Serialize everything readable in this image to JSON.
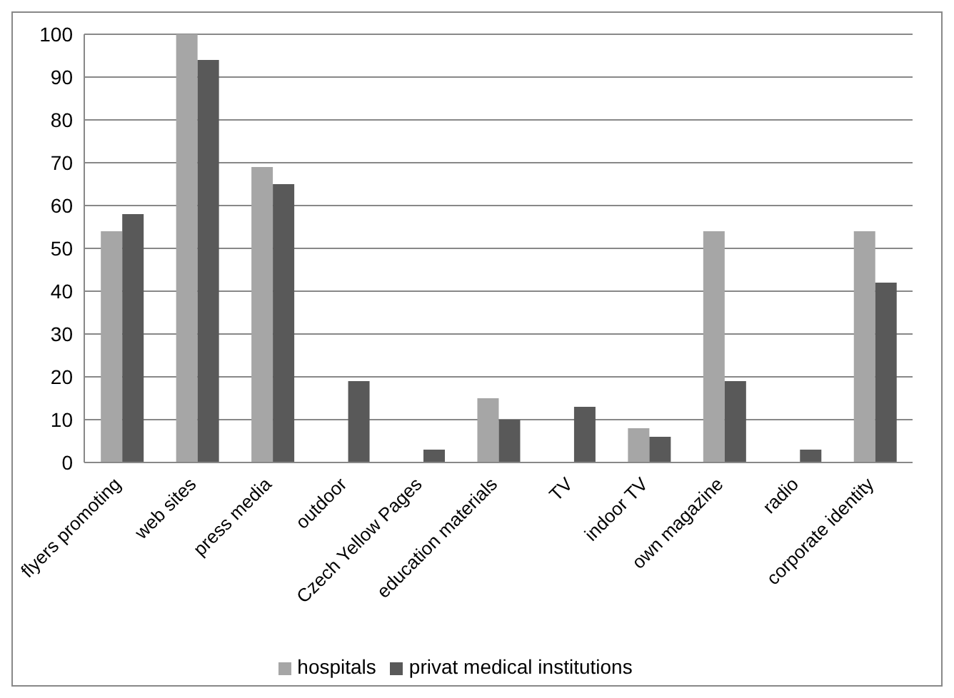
{
  "chart_data": {
    "type": "bar",
    "categories": [
      "flyers promoting",
      "web sites",
      "press media",
      "outdoor",
      "Czech Yellow Pages",
      "education materials",
      "TV",
      "indoor TV",
      "own magazine",
      "radio",
      "corporate identity"
    ],
    "series": [
      {
        "name": "hospitals",
        "color": "#a6a6a6",
        "values": [
          54,
          100,
          69,
          0,
          0,
          15,
          0,
          8,
          54,
          0,
          54
        ]
      },
      {
        "name": "privat medical institutions",
        "color": "#595959",
        "values": [
          58,
          94,
          65,
          19,
          3,
          10,
          13,
          6,
          19,
          3,
          42
        ]
      }
    ],
    "ylim": [
      0,
      100
    ],
    "yticks": [
      0,
      10,
      20,
      30,
      40,
      50,
      60,
      70,
      80,
      90,
      100
    ],
    "grid": "y",
    "legend": "bottom"
  }
}
